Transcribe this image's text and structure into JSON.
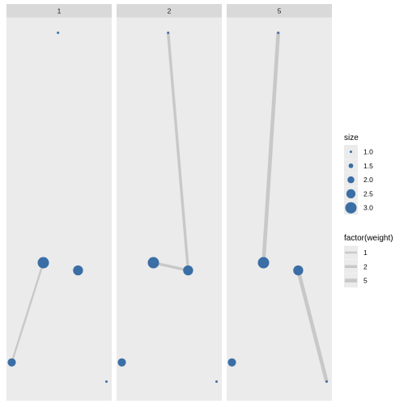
{
  "chart_data": {
    "type": "scatter",
    "title": "",
    "xlabel": "",
    "ylabel": "",
    "facet_strips": [
      "1",
      "2",
      "5"
    ],
    "colors": {
      "point": "#3A6EA5",
      "edge": "#C8C8C8",
      "panel_bg": "#EBEBEB",
      "strip_bg": "#D9D9D9"
    },
    "nodes": [
      {
        "id": "a",
        "x": 0.49,
        "y": 0.96,
        "size": 1.0
      },
      {
        "id": "b",
        "x": 0.35,
        "y": 0.36,
        "size": 3.0
      },
      {
        "id": "c",
        "x": 0.68,
        "y": 0.34,
        "size": 2.7
      },
      {
        "id": "d",
        "x": 0.05,
        "y": 0.1,
        "size": 2.3
      },
      {
        "id": "e",
        "x": 0.95,
        "y": 0.05,
        "size": 1.0
      }
    ],
    "edges": [
      {
        "from": "b",
        "to": "d",
        "weight": 1
      },
      {
        "from": "b",
        "to": "c",
        "weight": 2
      },
      {
        "from": "a",
        "to": "c",
        "weight": 2
      },
      {
        "from": "a",
        "to": "b",
        "weight": 5
      },
      {
        "from": "c",
        "to": "e",
        "weight": 5
      }
    ],
    "legend": {
      "size": {
        "title": "size",
        "entries": [
          {
            "value": 1.0,
            "label": "1.0"
          },
          {
            "value": 1.5,
            "label": "1.5"
          },
          {
            "value": 2.0,
            "label": "2.0"
          },
          {
            "value": 2.5,
            "label": "2.5"
          },
          {
            "value": 3.0,
            "label": "3.0"
          }
        ]
      },
      "weight": {
        "title": "factor(weight)",
        "entries": [
          {
            "value": 1,
            "label": "1"
          },
          {
            "value": 2,
            "label": "2"
          },
          {
            "value": 5,
            "label": "5"
          }
        ]
      }
    }
  }
}
